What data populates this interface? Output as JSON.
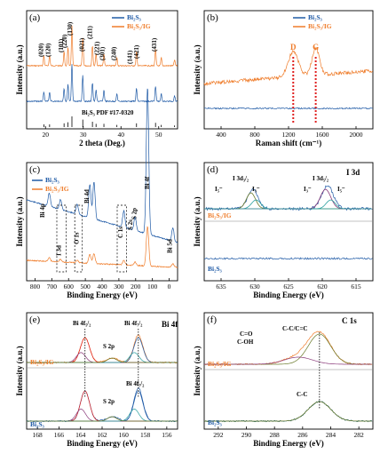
{
  "colors": {
    "blue": "#1f5aa6",
    "orange": "#ef7c2a",
    "red": "#e02020",
    "teal": "#2aa0a0",
    "olive": "#6a7a2a",
    "purple": "#8a3a7a"
  },
  "chart_data": [
    {
      "panel": "(a)",
      "type": "line",
      "xlabel": "2 theta (Deg.)",
      "ylabel": "Intensity (a.u.)",
      "xlim": [
        10,
        60
      ],
      "xticks": [
        "20",
        "30",
        "40",
        "50"
      ],
      "series": [
        {
          "name": "Bi₂S₃"
        },
        {
          "name": "Bi₂S₃/IG"
        }
      ],
      "reference": "Bi₂S₃ PDF #17-0320",
      "peak_labels": [
        "(020)",
        "(120)",
        "(101)",
        "(220)",
        "(130)",
        "(021)",
        "(211)",
        "(221)",
        "(301)",
        "(240)",
        "(141)",
        "(421)",
        "(431)"
      ]
    },
    {
      "panel": "(b)",
      "type": "line",
      "xlabel": "Raman shift (cm⁻¹)",
      "ylabel": "Intensity (a.u.)",
      "xlim": [
        400,
        2200
      ],
      "xticks": [
        "400",
        "800",
        "1200",
        "1600",
        "2000"
      ],
      "series": [
        {
          "name": "Bi₂S₃"
        },
        {
          "name": "Bi₂S₃/IG"
        }
      ],
      "bands": [
        {
          "label": "D",
          "x": 1350
        },
        {
          "label": "G",
          "x": 1590
        }
      ]
    },
    {
      "panel": "(c)",
      "type": "line",
      "xlabel": "Binding Energy (eV)",
      "ylabel": "Intensity (a.u.)",
      "xlim": [
        800,
        0
      ],
      "xticks": [
        "800",
        "700",
        "600",
        "500",
        "400",
        "300",
        "200",
        "100",
        "0"
      ],
      "series": [
        {
          "name": "Bi₂S₃"
        },
        {
          "name": "Bi₂S₃/IG"
        }
      ],
      "annotations": [
        "Bi 4p",
        "Bi 4d",
        "I 3d",
        "O 1s",
        "C 1s",
        "S 2s",
        "S 2p",
        "Bi 4f",
        "Bi 5d"
      ]
    },
    {
      "panel": "(d)",
      "type": "line",
      "title": "I 3d",
      "xlabel": "Binding Energy (eV)",
      "ylabel": "Intensity (a.u.)",
      "xlim": [
        638,
        612
      ],
      "xticks": [
        "635",
        "630",
        "625",
        "620",
        "615"
      ],
      "labels": [
        "Bi₂S₃/IG",
        "Bi₂S₃"
      ],
      "annotations": [
        "I 3d₃/₂",
        "I 3d₅/₂",
        "I₃⁻",
        "I₅⁻"
      ]
    },
    {
      "panel": "(e)",
      "type": "line",
      "title": "Bi 4f",
      "xlabel": "Binding Energy (eV)",
      "ylabel": "Intensity (a.u.)",
      "xlim": [
        170,
        155
      ],
      "xticks": [
        "168",
        "166",
        "164",
        "162",
        "160",
        "158",
        "156"
      ],
      "labels": [
        "Bi₂S₃/IG",
        "Bi₂S₃"
      ],
      "annotations": [
        "Bi 4f₅/₂",
        "Bi 4f₇/₂",
        "S 2p"
      ]
    },
    {
      "panel": "(f)",
      "type": "line",
      "title": "C 1s",
      "xlabel": "Binding Energy (eV)",
      "ylabel": "Intensity (a.u.)",
      "xlim": [
        293,
        281
      ],
      "xticks": [
        "292",
        "290",
        "288",
        "286",
        "284",
        "282"
      ],
      "labels": [
        "Bi₂S₃/IG",
        "Bi₂S₃"
      ],
      "annotations": [
        "C=O",
        "C-OH",
        "C-C/C=C",
        "C-C"
      ]
    }
  ]
}
